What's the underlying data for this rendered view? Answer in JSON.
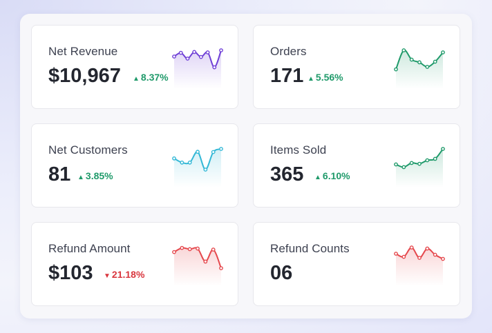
{
  "cards": [
    {
      "label": "Net Revenue",
      "value": "$10,967",
      "change": "8.37%",
      "direction": "up",
      "color": "#6f3fd6",
      "trend": [
        0.3,
        0.12,
        0.4,
        0.08,
        0.32,
        0.1,
        0.82,
        0.0
      ]
    },
    {
      "label": "Orders",
      "value": "171",
      "change": "5.56%",
      "direction": "up",
      "color": "#1f9a6a",
      "trend": [
        0.92,
        0.0,
        0.45,
        0.58,
        0.8,
        0.55,
        0.1
      ]
    },
    {
      "label": "Net Customers",
      "value": "81",
      "change": "3.85%",
      "direction": "up",
      "color": "#33b8d6",
      "trend": [
        0.46,
        0.66,
        0.66,
        0.14,
        1.0,
        0.15,
        0.0
      ]
    },
    {
      "label": "Items Sold",
      "value": "365",
      "change": "6.10%",
      "direction": "up",
      "color": "#1f9a6a",
      "trend": [
        0.75,
        0.88,
        0.68,
        0.72,
        0.55,
        0.48,
        0.0
      ]
    },
    {
      "label": "Refund Amount",
      "value": "$103",
      "change": "21.18%",
      "direction": "down",
      "color": "#e5484d",
      "trend": [
        0.22,
        0.02,
        0.08,
        0.05,
        0.68,
        0.1,
        1.0
      ]
    },
    {
      "label": "Refund Counts",
      "value": "06",
      "change": "",
      "direction": "none",
      "color": "#e5484d",
      "trend": [
        0.3,
        0.45,
        0.0,
        0.5,
        0.05,
        0.35,
        0.55
      ]
    }
  ]
}
